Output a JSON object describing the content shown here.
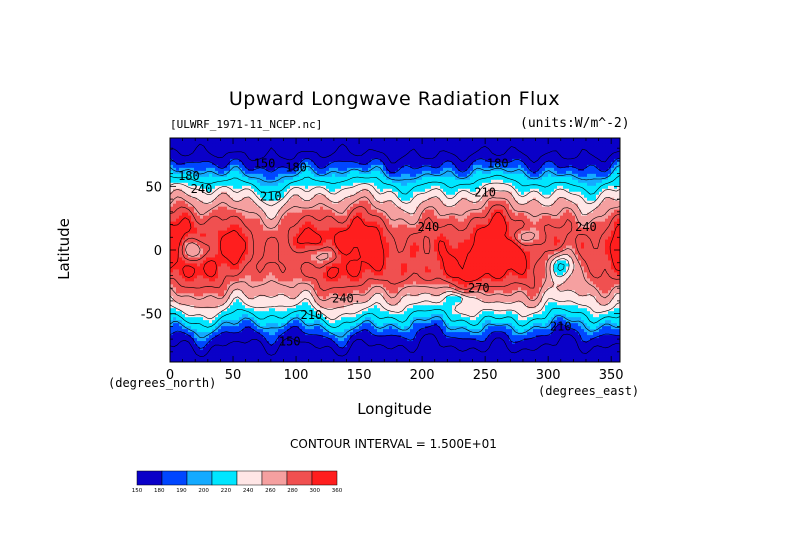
{
  "title": "Upward Longwave Radiation Flux",
  "file_label": "[ULWRF_1971-11_NCEP.nc]",
  "units_label": "(units:W/m^-2)",
  "contour_interval": "CONTOUR INTERVAL = 1.500E+01",
  "chart_data": {
    "type": "heatmap",
    "title": "Upward Longwave Radiation Flux",
    "xlabel": "Longitude",
    "ylabel": "Latitude",
    "x_units": "(degrees_east)",
    "y_units": "(degrees_north)",
    "xlim": [
      0,
      357
    ],
    "ylim": [
      -88,
      88
    ],
    "x_ticks": [
      0,
      50,
      100,
      150,
      200,
      250,
      300,
      350
    ],
    "y_ticks": [
      -50,
      0,
      50
    ],
    "colorbar": {
      "levels": [
        150,
        180,
        190,
        200,
        220,
        240,
        260,
        280,
        300,
        360
      ],
      "level_labels": [
        "150",
        "180",
        "190",
        "200",
        "220",
        "240",
        "260",
        "280",
        "300",
        "360"
      ],
      "colors": [
        "#0a00c8",
        "#0046ff",
        "#14aaff",
        "#00e6ff",
        "#ffe6e6",
        "#f5a0a0",
        "#f05050",
        "#ff1e1e"
      ]
    },
    "contour_labels": [
      {
        "text": "150",
        "lon": 75,
        "lat": 68
      },
      {
        "text": "180",
        "lon": 15,
        "lat": 58
      },
      {
        "text": "180",
        "lon": 100,
        "lat": 65
      },
      {
        "text": "180",
        "lon": 260,
        "lat": 68
      },
      {
        "text": "210",
        "lon": 250,
        "lat": 45
      },
      {
        "text": "240",
        "lon": 25,
        "lat": 48
      },
      {
        "text": "210",
        "lon": 80,
        "lat": 42
      },
      {
        "text": "240",
        "lon": 205,
        "lat": 18
      },
      {
        "text": "240",
        "lon": 330,
        "lat": 18
      },
      {
        "text": "240.",
        "lon": 140,
        "lat": -38
      },
      {
        "text": "210.",
        "lon": 115,
        "lat": -51
      },
      {
        "text": "210",
        "lon": 310,
        "lat": -60
      },
      {
        "text": "150",
        "lon": 95,
        "lat": -72
      },
      {
        "text": "270",
        "lon": 245,
        "lat": -30
      }
    ]
  }
}
